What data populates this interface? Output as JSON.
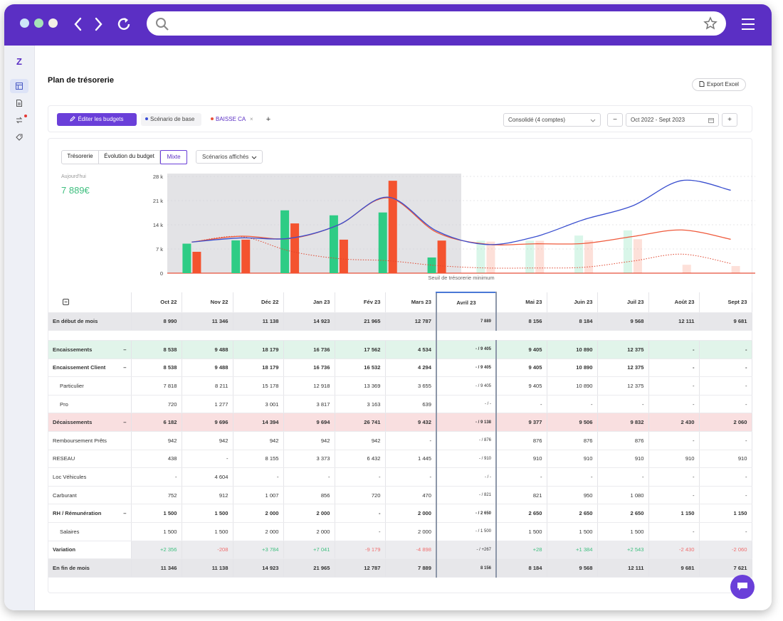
{
  "app": {
    "page_title": "Plan de trésorerie",
    "export_label": "Export Excel",
    "logo_letter": "Z"
  },
  "toolbar": {
    "edit_budgets": "Éditer les budgets",
    "scenarios": [
      {
        "label": "Scénario de base",
        "color": "#3b4fd8"
      },
      {
        "label": "BAISSE CA",
        "color": "#e8503a"
      }
    ],
    "add_label": "+",
    "account_select": "Consolidé (4 comptes)",
    "date_range": "Oct 2022 - Sept 2023",
    "minus_label": "−",
    "plus_label": "+"
  },
  "view_tabs": [
    "Trésorerie",
    "Évolution du budget",
    "Mixte"
  ],
  "active_tab": "Mixte",
  "scenarios_dropdown": "Scénarios affichés",
  "today": {
    "label": "Aujourd'hui",
    "value": "7 889€"
  },
  "chart_data": {
    "type": "bar",
    "categories": [
      "Oct 22",
      "Nov 22",
      "Déc 22",
      "Jan 23",
      "Fév 23",
      "Mars 23",
      "Avril 23",
      "Mai 23",
      "Juin 23",
      "Juil 23",
      "Août 23",
      "Sept 23"
    ],
    "yticks": [
      "0",
      "7 k",
      "14 k",
      "21 k",
      "28 k"
    ],
    "ylim": [
      0,
      28000
    ],
    "series": [
      {
        "values": [
          8538,
          9488,
          18179,
          16736,
          17562,
          4534,
          9405,
          9405,
          10890,
          12375,
          0,
          0
        ],
        "color": "#2ecc85"
      },
      {
        "values": [
          6182,
          9696,
          14394,
          9694,
          26741,
          9432,
          9138,
          9377,
          9506,
          9832,
          2430,
          2060
        ],
        "color": "#f4532f"
      },
      {
        "type": "line",
        "values": [
          8990,
          11346,
          11138,
          14923,
          21965,
          12787,
          7889,
          8156,
          8184,
          9568,
          12111,
          9681
        ],
        "color": "#3a4fcf"
      }
    ],
    "line_blue": [
      9000,
      10200,
      10100,
      14000,
      22000,
      12200,
      8300,
      10500,
      15500,
      19500,
      26800,
      24000
    ],
    "line_red": [
      9000,
      10700,
      10000,
      14000,
      21800,
      11800,
      8400,
      8500,
      8600,
      10600,
      12500,
      9800
    ],
    "line_red_dotted": [
      9000,
      10600,
      6400,
      4200,
      3600,
      2200,
      1500,
      1500,
      1700,
      3500,
      5500,
      2800
    ],
    "threshold_label": "Seuil de trésorerie minimum",
    "shaded_until": 6
  },
  "table": {
    "months": [
      "Oct 22",
      "Nov 22",
      "Déc 22",
      "Jan 23",
      "Fév 23",
      "Mars 23",
      "Avril 23",
      "Mai 23",
      "Juin 23",
      "Juil 23",
      "Août 23",
      "Sept 23"
    ],
    "rows": [
      {
        "label": "En début de mois",
        "style": "gray",
        "values": [
          "8 990",
          "11 346",
          "11 138",
          "14 923",
          "21 965",
          "12 787",
          "7 889",
          "8 156",
          "8 184",
          "9 568",
          "12 111",
          "9 681"
        ]
      },
      {
        "label": "",
        "style": "spacer",
        "values": [
          "",
          "",
          "",
          "",
          "",
          "",
          "",
          "",
          "",
          "",
          "",
          ""
        ]
      },
      {
        "label": "Encaissements",
        "toggle": "–",
        "style": "green",
        "values": [
          "8 538",
          "9 488",
          "18 179",
          "16 736",
          "17 562",
          "4 534",
          "- / 9 405",
          "9 405",
          "10 890",
          "12 375",
          "-",
          "-"
        ]
      },
      {
        "label": "Encaissement Client",
        "toggle": "–",
        "style": "bold",
        "values": [
          "8 538",
          "9 488",
          "18 179",
          "16 736",
          "16 532",
          "4 294",
          "- / 9 405",
          "9 405",
          "10 890",
          "12 375",
          "-",
          "-"
        ]
      },
      {
        "label": "Particulier",
        "style": "sub",
        "values": [
          "7 818",
          "8 211",
          "15 178",
          "12 918",
          "13 369",
          "3 655",
          "- / 9 405",
          "9 405",
          "10 890",
          "12 375",
          "-",
          "-"
        ]
      },
      {
        "label": "Pro",
        "style": "sub",
        "values": [
          "720",
          "1 277",
          "3 001",
          "3 817",
          "3 163",
          "639",
          "- / -",
          "-",
          "-",
          "-",
          "-",
          "-"
        ]
      },
      {
        "label": "Décaissements",
        "toggle": "–",
        "style": "red",
        "values": [
          "6 182",
          "9 696",
          "14 394",
          "9 694",
          "26 741",
          "9 432",
          "- / 9 138",
          "9 377",
          "9 506",
          "9 832",
          "2 430",
          "2 060"
        ]
      },
      {
        "label": "Remboursement Prêts",
        "style": "plain",
        "values": [
          "942",
          "942",
          "942",
          "942",
          "942",
          "-",
          "- / 876",
          "876",
          "876",
          "876",
          "-",
          "-"
        ]
      },
      {
        "label": "RESEAU",
        "style": "plain",
        "values": [
          "438",
          "-",
          "8 155",
          "3 373",
          "6 432",
          "1 445",
          "- / 910",
          "910",
          "910",
          "910",
          "910",
          "910"
        ]
      },
      {
        "label": "Loc Véhicules",
        "style": "plain",
        "values": [
          "-",
          "4 604",
          "-",
          "-",
          "-",
          "-",
          "- / -",
          "-",
          "-",
          "-",
          "-",
          "-"
        ]
      },
      {
        "label": "Carburant",
        "style": "plain",
        "values": [
          "752",
          "912",
          "1 007",
          "856",
          "720",
          "470",
          "- / 821",
          "821",
          "950",
          "1 080",
          "-",
          "-"
        ]
      },
      {
        "label": "RH / Rémunération",
        "toggle": "–",
        "style": "bold",
        "values": [
          "1 500",
          "1 500",
          "2 000",
          "2 000",
          "-",
          "2 000",
          "- / 2 650",
          "2 650",
          "2 650",
          "2 650",
          "1 150",
          "1 150"
        ]
      },
      {
        "label": "Salaires",
        "style": "sub",
        "values": [
          "1 500",
          "1 500",
          "2 000",
          "2 000",
          "-",
          "2 000",
          "- / 1 500",
          "1 500",
          "1 500",
          "1 500",
          "-",
          "-"
        ]
      },
      {
        "label": "Variation",
        "style": "variation",
        "values": [
          "+2 356",
          "-208",
          "+3 784",
          "+7 041",
          "-9 179",
          "-4 898",
          "- / +267",
          "+28",
          "+1 384",
          "+2 543",
          "-2 430",
          "-2 060"
        ]
      },
      {
        "label": "En fin de mois",
        "style": "gray",
        "values": [
          "11 346",
          "11 138",
          "14 923",
          "21 965",
          "12 787",
          "7 889",
          "8 156",
          "8 184",
          "9 568",
          "12 111",
          "9 681",
          "7 621"
        ]
      }
    ]
  }
}
